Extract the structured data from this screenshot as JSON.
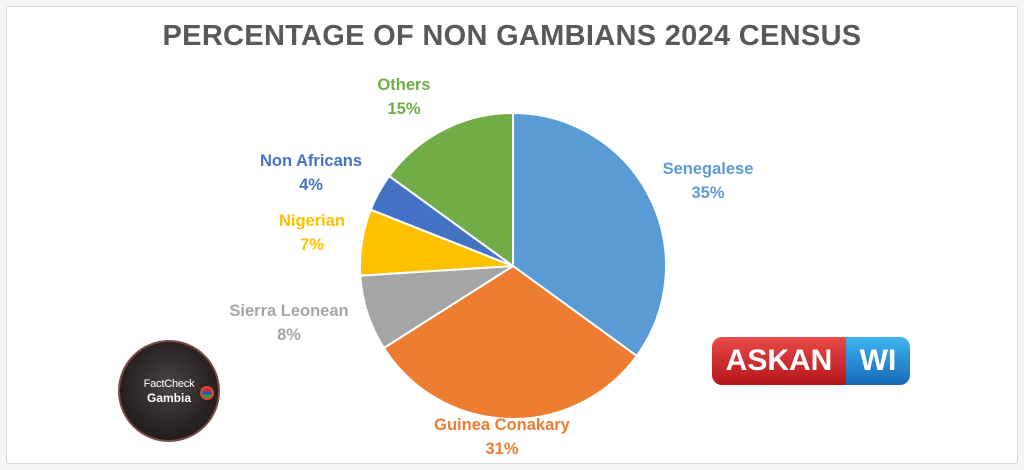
{
  "chart_data": {
    "type": "pie",
    "title": "PERCENTAGE OF NON GAMBIANS 2024 CENSUS",
    "slices": [
      {
        "label": "Senegalese",
        "value": 35,
        "value_label": "35%",
        "color": "#5b9bd5",
        "label_color": "#5b9bd5"
      },
      {
        "label": "Guinea Conakary",
        "value": 31,
        "value_label": "31%",
        "color": "#ed7d31",
        "label_color": "#ed7d31"
      },
      {
        "label": "Sierra Leonean",
        "value": 8,
        "value_label": "8%",
        "color": "#a5a5a5",
        "label_color": "#a5a5a5"
      },
      {
        "label": "Nigerian",
        "value": 7,
        "value_label": "7%",
        "color": "#ffc000",
        "label_color": "#ffc000"
      },
      {
        "label": "Non Africans",
        "value": 4,
        "value_label": "4%",
        "color": "#4472c4",
        "label_color": "#4472c4"
      },
      {
        "label": "Others",
        "value": 15,
        "value_label": "15%",
        "color": "#70ad47",
        "label_color": "#70ad47"
      }
    ]
  },
  "logos": {
    "factcheck_line1": "FactCheck",
    "factcheck_line2": "Gambia",
    "askanwi_left": "ASKAN",
    "askanwi_right": "WI"
  }
}
